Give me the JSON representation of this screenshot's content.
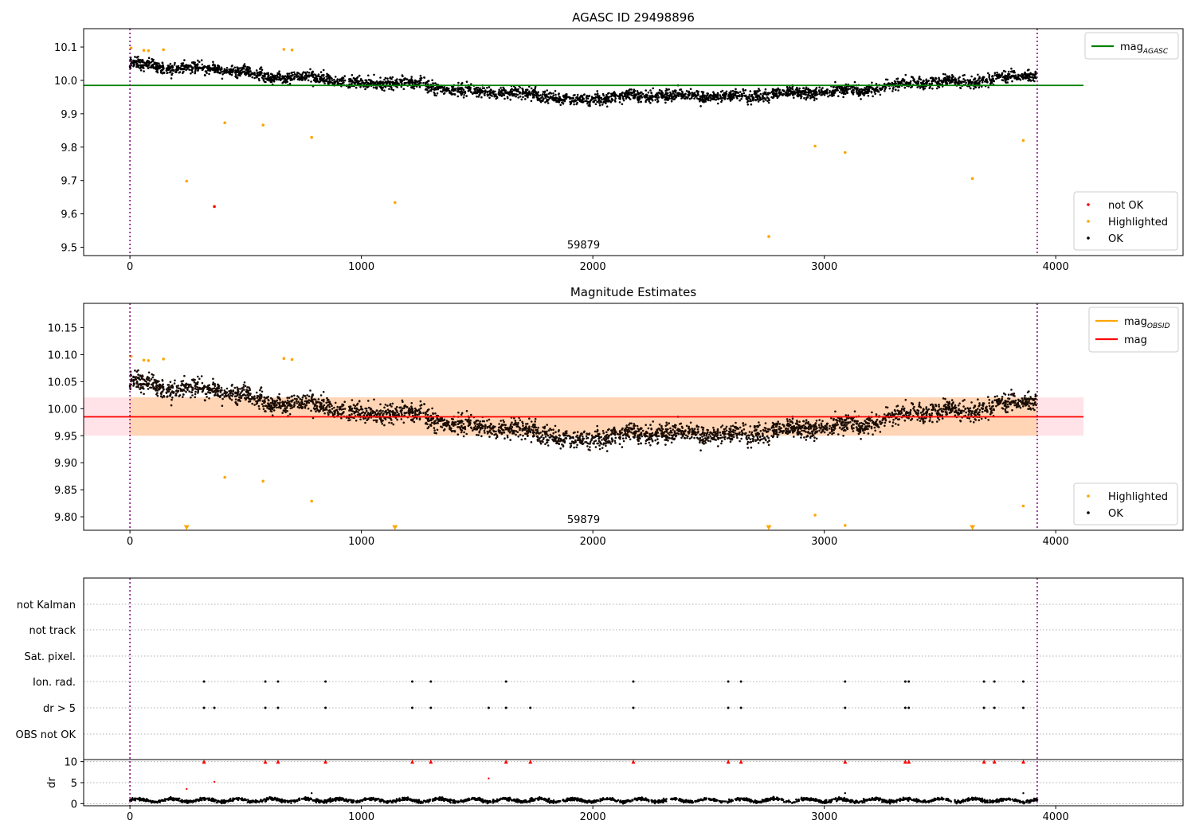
{
  "chart_data": [
    {
      "type": "scatter",
      "title": "AGASC ID 29498896",
      "xlim": [
        -200,
        4550
      ],
      "ylim": [
        9.475,
        10.155
      ],
      "xticks": [
        0,
        1000,
        2000,
        3000,
        4000
      ],
      "yticks": [
        9.5,
        9.6,
        9.7,
        9.8,
        9.9,
        10.0,
        10.1
      ],
      "ytick_decimals": 1,
      "annotation": "59879",
      "vlines": [
        0,
        3920
      ],
      "hlines": [
        {
          "name": "mag_AGASC",
          "y": 9.985,
          "x_range": [
            -200,
            4120
          ],
          "color": "#008000"
        }
      ],
      "legend_lines": [
        {
          "label": "mag",
          "sub": "AGASC",
          "color": "#008000"
        }
      ],
      "legend_points": [
        {
          "label": "not OK",
          "color": "#ff0000"
        },
        {
          "label": "Highlighted",
          "color": "#ffa500"
        },
        {
          "label": "OK",
          "color": "#000000"
        }
      ],
      "series": [
        {
          "name": "not OK",
          "color": "#ff0000",
          "marker": "dot",
          "x": [
            365
          ],
          "y": [
            9.622
          ]
        },
        {
          "name": "Highlighted",
          "color": "#ffa500",
          "marker": "dot",
          "x": [
            5,
            60,
            80,
            145,
            245,
            410,
            575,
            665,
            700,
            785,
            1145,
            2760,
            2960,
            3090,
            3640,
            3860
          ],
          "y": [
            10.097,
            10.09,
            10.089,
            10.092,
            9.698,
            9.873,
            9.866,
            10.093,
            10.091,
            9.829,
            9.634,
            9.532,
            9.803,
            9.784,
            9.706,
            9.82
          ]
        },
        {
          "name": "OK",
          "color": "#000000",
          "marker": "dot",
          "x_range": [
            0,
            3920
          ],
          "count": 3400,
          "trend_x": [
            0,
            200,
            400,
            600,
            800,
            1000,
            1200,
            1400,
            1600,
            1800,
            1900,
            2000,
            2200,
            2400,
            2600,
            2800,
            3000,
            3200,
            3400,
            3600,
            3800,
            3920
          ],
          "trend_y": [
            10.05,
            10.035,
            10.035,
            10.01,
            10.01,
            9.99,
            9.995,
            9.97,
            9.965,
            9.955,
            9.94,
            9.945,
            9.955,
            9.955,
            9.95,
            9.96,
            9.965,
            9.975,
            9.995,
            9.995,
            10.01,
            10.02
          ],
          "spread": 0.012
        }
      ]
    },
    {
      "type": "scatter",
      "title": "Magnitude Estimates",
      "xlim": [
        -200,
        4550
      ],
      "ylim": [
        9.775,
        10.195
      ],
      "xticks": [
        0,
        1000,
        2000,
        3000,
        4000
      ],
      "yticks": [
        9.8,
        9.85,
        9.9,
        9.95,
        10.0,
        10.05,
        10.1,
        10.15
      ],
      "ytick_decimals": 2,
      "annotation": "59879",
      "vlines": [
        0,
        3920
      ],
      "bands": [
        {
          "name": "mag band",
          "y0": 9.95,
          "y1": 10.021,
          "x_range": [
            -200,
            4120
          ],
          "color": "#ffc0cb"
        }
      ],
      "hlines": [
        {
          "name": "mag",
          "y": 9.985,
          "x_range": [
            -200,
            4120
          ],
          "color": "#ff0000"
        }
      ],
      "obsid_band": {
        "y0": 9.95,
        "y1": 10.021,
        "x_range": [
          0,
          3920
        ],
        "color": "#ffa500"
      },
      "legend_lines": [
        {
          "label": "mag",
          "sub": "OBSID",
          "color": "#ffa500"
        },
        {
          "label": "mag",
          "sub": "",
          "color": "#ff0000"
        }
      ],
      "legend_points": [
        {
          "label": "Highlighted",
          "color": "#ffa500"
        },
        {
          "label": "OK",
          "color": "#000000"
        }
      ],
      "series": [
        {
          "name": "Highlighted",
          "color": "#ffa500",
          "marker": "dot",
          "x": [
            5,
            60,
            80,
            145,
            410,
            575,
            665,
            700,
            785,
            2960,
            3090,
            3860
          ],
          "y": [
            10.097,
            10.09,
            10.089,
            10.092,
            9.873,
            9.866,
            10.093,
            10.091,
            9.829,
            9.803,
            9.784,
            9.82
          ]
        },
        {
          "name": "Highlighted (off-scale)",
          "color": "#ffa500",
          "marker": "triangle-down",
          "x": [
            245,
            1145,
            2760,
            3640
          ],
          "y": [
            9.78,
            9.78,
            9.78,
            9.78
          ]
        },
        {
          "name": "OK",
          "color": "#000000",
          "marker": "dot",
          "x_range": [
            0,
            3920
          ],
          "count": 3400,
          "same_as_panel": 0
        }
      ]
    },
    {
      "type": "scatter",
      "title": "",
      "xlim": [
        -200,
        4550
      ],
      "xticks": [
        0,
        1000,
        2000,
        3000,
        4000
      ],
      "vlines": [
        0,
        3920
      ],
      "flag_labels": [
        "not Kalman",
        "not track",
        "Sat. pixel.",
        "Ion. rad.",
        "dr > 5",
        "OBS not OK"
      ],
      "flags": {
        "Ion. rad.": [
          320,
          585,
          640,
          845,
          1220,
          1300,
          1625,
          2175,
          2585,
          2640,
          3090,
          3350,
          3365,
          3690,
          3735,
          3860
        ],
        "dr > 5": [
          320,
          365,
          585,
          640,
          845,
          1220,
          1300,
          1550,
          1625,
          1730,
          2175,
          2585,
          2640,
          3090,
          3350,
          3365,
          3690,
          3735,
          3860
        ]
      },
      "dr": {
        "ylabel": "dr",
        "ylim": [
          -0.5,
          10.5
        ],
        "yticks": [
          0,
          5,
          10
        ],
        "clip_value": 10,
        "clipped_x": [
          320,
          585,
          640,
          845,
          1220,
          1300,
          1625,
          1730,
          2175,
          2585,
          2640,
          3090,
          3350,
          3365,
          3690,
          3735,
          3860
        ],
        "outliers_x": [
          245,
          365,
          785,
          1550,
          3090,
          3860
        ],
        "outliers_y": [
          3.5,
          5.2,
          2.5,
          6.0,
          2.5,
          2.5
        ],
        "baseline_mean": 0.8
      }
    }
  ]
}
